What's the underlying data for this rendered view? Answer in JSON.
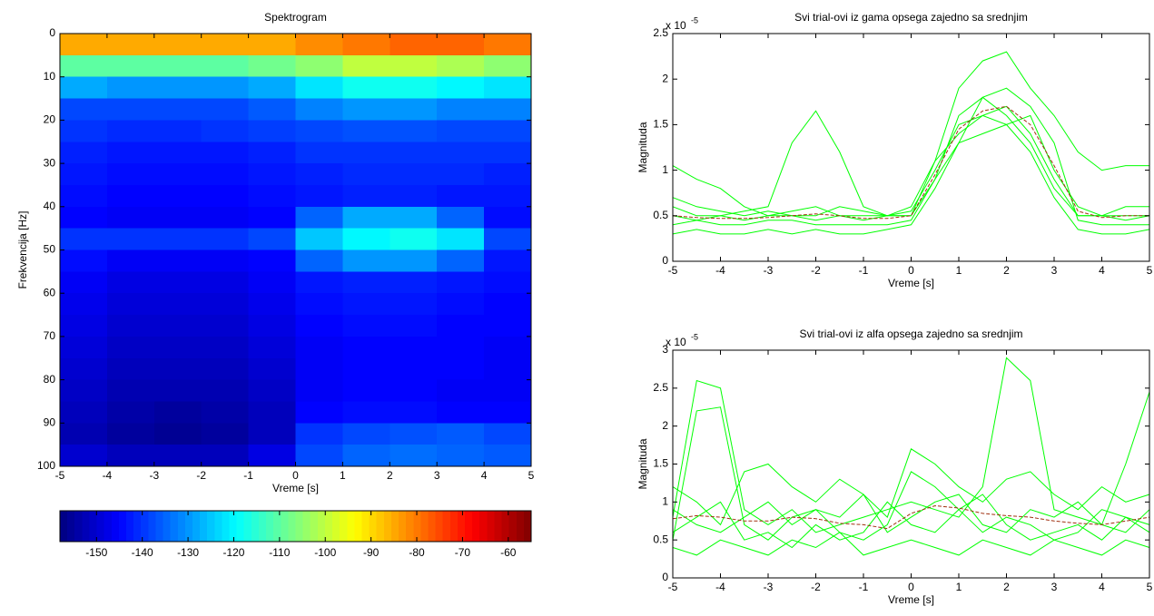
{
  "chart_data": [
    {
      "type": "heatmap",
      "title": "Spektrogram",
      "xlabel": "Vreme [s]",
      "ylabel": "Frekvencija [Hz]",
      "xlim": [
        -5,
        5
      ],
      "ylim": [
        0,
        100
      ],
      "y_reverse": true,
      "xticks": [
        -5,
        -4,
        -3,
        -2,
        -1,
        0,
        1,
        2,
        3,
        4,
        5
      ],
      "yticks": [
        0,
        10,
        20,
        30,
        40,
        50,
        60,
        70,
        80,
        90,
        100
      ],
      "colormap": "jet",
      "clim": [
        -158,
        -55
      ],
      "colorbar_ticks": [
        -150,
        -140,
        -130,
        -120,
        -110,
        -100,
        -90,
        -80,
        -70,
        -60
      ],
      "x": [
        -4.5,
        -3.5,
        -2.5,
        -1.5,
        -0.5,
        0.5,
        1.5,
        2.5,
        3.5,
        4.5
      ],
      "y": [
        2.5,
        7.5,
        12.5,
        17.5,
        22.5,
        27.5,
        32.5,
        37.5,
        42.5,
        47.5,
        52.5,
        57.5,
        62.5,
        67.5,
        72.5,
        77.5,
        82.5,
        87.5,
        92.5,
        97.5
      ],
      "values": [
        [
          -85,
          -85,
          -85,
          -85,
          -85,
          -82,
          -80,
          -78,
          -78,
          -80
        ],
        [
          -110,
          -110,
          -110,
          -110,
          -108,
          -105,
          -100,
          -100,
          -102,
          -105
        ],
        [
          -128,
          -130,
          -130,
          -130,
          -128,
          -122,
          -118,
          -118,
          -120,
          -122
        ],
        [
          -138,
          -138,
          -138,
          -138,
          -136,
          -132,
          -130,
          -130,
          -132,
          -132
        ],
        [
          -140,
          -141,
          -141,
          -140,
          -139,
          -138,
          -137,
          -137,
          -138,
          -138
        ],
        [
          -142,
          -143,
          -143,
          -143,
          -142,
          -140,
          -140,
          -140,
          -140,
          -140
        ],
        [
          -143,
          -144,
          -144,
          -144,
          -143,
          -142,
          -141,
          -141,
          -141,
          -142
        ],
        [
          -144,
          -145,
          -145,
          -145,
          -144,
          -143,
          -142,
          -142,
          -143,
          -143
        ],
        [
          -145,
          -146,
          -146,
          -146,
          -145,
          -135,
          -128,
          -128,
          -135,
          -144
        ],
        [
          -140,
          -140,
          -140,
          -140,
          -138,
          -125,
          -120,
          -118,
          -122,
          -138
        ],
        [
          -144,
          -146,
          -146,
          -146,
          -145,
          -135,
          -130,
          -130,
          -135,
          -143
        ],
        [
          -146,
          -148,
          -148,
          -148,
          -146,
          -143,
          -142,
          -142,
          -143,
          -144
        ],
        [
          -147,
          -149,
          -149,
          -149,
          -147,
          -144,
          -143,
          -143,
          -144,
          -145
        ],
        [
          -148,
          -150,
          -150,
          -150,
          -148,
          -145,
          -144,
          -144,
          -145,
          -145
        ],
        [
          -149,
          -151,
          -151,
          -151,
          -149,
          -146,
          -145,
          -145,
          -145,
          -146
        ],
        [
          -150,
          -152,
          -152,
          -152,
          -150,
          -146,
          -145,
          -145,
          -145,
          -146
        ],
        [
          -151,
          -153,
          -153,
          -153,
          -151,
          -146,
          -145,
          -145,
          -146,
          -146
        ],
        [
          -152,
          -154,
          -155,
          -154,
          -152,
          -145,
          -144,
          -144,
          -145,
          -145
        ],
        [
          -153,
          -155,
          -156,
          -155,
          -152,
          -140,
          -138,
          -137,
          -136,
          -138
        ],
        [
          -150,
          -152,
          -152,
          -152,
          -148,
          -138,
          -135,
          -134,
          -135,
          -136
        ]
      ]
    },
    {
      "type": "line",
      "title": "Svi trial-ovi iz gama opsega zajedno sa srednjim",
      "xlabel": "Vreme [s]",
      "ylabel": "Magnituda",
      "y_scale_label": "x 10",
      "y_scale_exponent": "-5",
      "xlim": [
        -5,
        5
      ],
      "ylim": [
        0,
        2.5
      ],
      "xticks": [
        -5,
        -4,
        -3,
        -2,
        -1,
        0,
        1,
        2,
        3,
        4,
        5
      ],
      "yticks": [
        0,
        0.5,
        1,
        1.5,
        2,
        2.5
      ],
      "x": [
        -5,
        -4.5,
        -4,
        -3.5,
        -3,
        -2.5,
        -2,
        -1.5,
        -1,
        -0.5,
        0,
        0.5,
        1,
        1.5,
        2,
        2.5,
        3,
        3.5,
        4,
        4.5,
        5
      ],
      "series": [
        {
          "color": "#00ff00",
          "values": [
            0.5,
            0.45,
            0.5,
            0.45,
            0.5,
            0.5,
            0.45,
            0.5,
            0.5,
            0.5,
            0.55,
            1.0,
            1.5,
            1.6,
            1.7,
            1.4,
            0.9,
            0.5,
            0.5,
            0.45,
            0.5
          ]
        },
        {
          "color": "#00ff00",
          "values": [
            0.6,
            0.5,
            0.5,
            0.55,
            0.6,
            1.3,
            1.65,
            1.2,
            0.6,
            0.5,
            0.5,
            0.9,
            1.6,
            1.8,
            1.6,
            1.3,
            0.8,
            0.5,
            0.5,
            0.5,
            0.5
          ]
        },
        {
          "color": "#00ff00",
          "values": [
            1.05,
            0.9,
            0.8,
            0.6,
            0.5,
            0.55,
            0.6,
            0.5,
            0.45,
            0.5,
            0.6,
            1.1,
            1.9,
            2.2,
            2.3,
            1.9,
            1.6,
            1.2,
            1.0,
            1.05,
            1.05
          ]
        },
        {
          "color": "#00ff00",
          "values": [
            0.3,
            0.35,
            0.3,
            0.3,
            0.35,
            0.3,
            0.35,
            0.3,
            0.3,
            0.35,
            0.4,
            0.8,
            1.3,
            1.4,
            1.5,
            1.2,
            0.7,
            0.35,
            0.3,
            0.3,
            0.35
          ]
        },
        {
          "color": "#00ff00",
          "values": [
            0.7,
            0.6,
            0.55,
            0.5,
            0.55,
            0.5,
            0.5,
            0.6,
            0.55,
            0.5,
            0.5,
            1.1,
            1.4,
            1.6,
            1.5,
            1.6,
            1.0,
            0.6,
            0.5,
            0.6,
            0.6
          ]
        },
        {
          "color": "#00ff00",
          "values": [
            0.4,
            0.45,
            0.4,
            0.4,
            0.45,
            0.45,
            0.4,
            0.4,
            0.4,
            0.4,
            0.45,
            0.9,
            1.3,
            1.8,
            1.9,
            1.7,
            1.3,
            0.45,
            0.4,
            0.4,
            0.4
          ]
        },
        {
          "color": "#a03010",
          "dash": true,
          "values": [
            0.5,
            0.48,
            0.47,
            0.47,
            0.48,
            0.5,
            0.52,
            0.5,
            0.47,
            0.47,
            0.5,
            0.95,
            1.45,
            1.65,
            1.7,
            1.5,
            1.05,
            0.55,
            0.48,
            0.5,
            0.5
          ]
        }
      ]
    },
    {
      "type": "line",
      "title": "Svi trial-ovi iz alfa opsega zajedno sa srednjim",
      "xlabel": "Vreme [s]",
      "ylabel": "Magnituda",
      "y_scale_label": "x 10",
      "y_scale_exponent": "-5",
      "xlim": [
        -5,
        5
      ],
      "ylim": [
        0,
        3
      ],
      "xticks": [
        -5,
        -4,
        -3,
        -2,
        -1,
        0,
        1,
        2,
        3,
        4,
        5
      ],
      "yticks": [
        0,
        0.5,
        1,
        1.5,
        2,
        2.5,
        3
      ],
      "x": [
        -5,
        -4.5,
        -4,
        -3.5,
        -3,
        -2.5,
        -2,
        -1.5,
        -1,
        -0.5,
        0,
        0.5,
        1,
        1.5,
        2,
        2.5,
        3,
        3.5,
        4,
        4.5,
        5
      ],
      "series": [
        {
          "color": "#00ff00",
          "values": [
            0.8,
            2.6,
            2.5,
            0.9,
            0.7,
            0.9,
            0.6,
            0.7,
            0.8,
            0.9,
            1.0,
            0.9,
            0.8,
            1.2,
            2.9,
            2.6,
            0.9,
            0.8,
            0.7,
            1.5,
            2.45
          ]
        },
        {
          "color": "#00ff00",
          "values": [
            0.5,
            2.2,
            2.25,
            0.7,
            0.5,
            0.8,
            0.9,
            0.6,
            0.5,
            0.7,
            1.4,
            1.2,
            0.9,
            0.6,
            0.8,
            0.7,
            0.5,
            0.6,
            0.9,
            0.8,
            0.6
          ]
        },
        {
          "color": "#00ff00",
          "values": [
            1.2,
            1.0,
            0.7,
            1.4,
            1.5,
            1.2,
            1.0,
            1.3,
            1.1,
            0.8,
            1.7,
            1.5,
            1.2,
            1.0,
            1.3,
            1.4,
            1.1,
            0.9,
            1.2,
            1.0,
            1.1
          ]
        },
        {
          "color": "#00ff00",
          "values": [
            0.4,
            0.3,
            0.5,
            0.4,
            0.3,
            0.5,
            0.4,
            0.6,
            0.3,
            0.4,
            0.5,
            0.4,
            0.3,
            0.5,
            0.4,
            0.3,
            0.5,
            0.4,
            0.3,
            0.5,
            0.4
          ]
        },
        {
          "color": "#00ff00",
          "values": [
            0.9,
            0.7,
            0.6,
            0.8,
            1.0,
            0.7,
            0.9,
            0.8,
            1.1,
            0.6,
            0.8,
            1.0,
            1.1,
            0.7,
            0.6,
            0.9,
            0.8,
            1.0,
            0.7,
            0.6,
            0.9
          ]
        },
        {
          "color": "#00ff00",
          "values": [
            0.6,
            0.8,
            1.0,
            0.5,
            0.6,
            0.4,
            0.7,
            0.5,
            0.6,
            1.0,
            0.7,
            0.6,
            0.9,
            1.1,
            0.7,
            0.5,
            0.6,
            0.7,
            0.5,
            0.8,
            0.7
          ]
        },
        {
          "color": "#a03010",
          "dash": true,
          "values": [
            0.78,
            0.82,
            0.8,
            0.75,
            0.75,
            0.8,
            0.78,
            0.72,
            0.7,
            0.65,
            0.85,
            0.95,
            0.92,
            0.85,
            0.82,
            0.8,
            0.75,
            0.72,
            0.7,
            0.75,
            0.8
          ]
        }
      ]
    }
  ]
}
